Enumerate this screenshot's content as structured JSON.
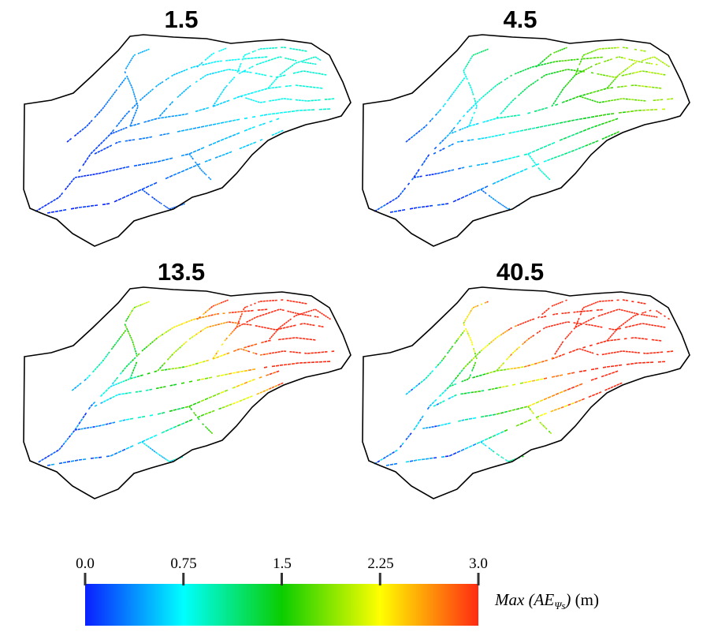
{
  "chart_data": [
    {
      "type": "heatmap",
      "title": "1.5",
      "level": 0.5,
      "note_values": "Max absolute error per river cell, color scale 0–3.0 m"
    },
    {
      "type": "heatmap",
      "title": "4.5",
      "level": 1.1
    },
    {
      "type": "heatmap",
      "title": "13.5",
      "level": 2.0
    },
    {
      "type": "heatmap",
      "title": "40.5",
      "level": 2.6
    }
  ],
  "panels": [
    {
      "title": "1.5"
    },
    {
      "title": "4.5"
    },
    {
      "title": "13.5"
    },
    {
      "title": "40.5"
    }
  ],
  "colorbar": {
    "ticks": [
      "0.0",
      "0.75",
      "1.5",
      "2.25",
      "3.0"
    ],
    "tick_values": [
      0.0,
      0.75,
      1.5,
      2.25,
      3.0
    ],
    "range": [
      0.0,
      3.0
    ],
    "stops": [
      "#0a1fff",
      "#00ffff",
      "#0acd00",
      "#ffff00",
      "#ff2a12"
    ],
    "label_prefix": "Max (AE",
    "label_sub": "Ψs",
    "label_suffix": ")",
    "label_unit": " (m)"
  }
}
